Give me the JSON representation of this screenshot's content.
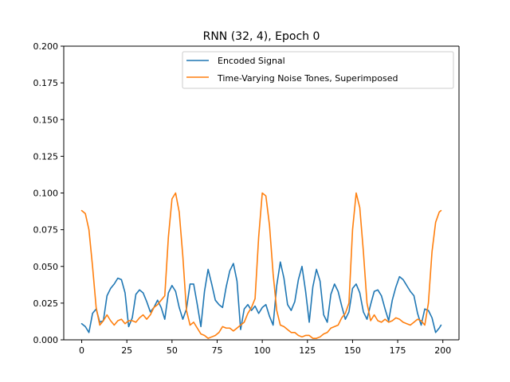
{
  "chart_data": {
    "type": "line",
    "title": "RNN (32, 4), Epoch 0",
    "xlabel": "",
    "ylabel": "",
    "xlim": [
      -9.95,
      208.95
    ],
    "ylim": [
      0.0,
      0.2
    ],
    "xticks": [
      0,
      25,
      50,
      75,
      100,
      125,
      150,
      175,
      200
    ],
    "xtick_labels": [
      "0",
      "25",
      "50",
      "75",
      "100",
      "125",
      "150",
      "175",
      "200"
    ],
    "yticks": [
      0.0,
      0.025,
      0.05,
      0.075,
      0.1,
      0.125,
      0.15,
      0.175,
      0.2
    ],
    "ytick_labels": [
      "0.000",
      "0.025",
      "0.050",
      "0.075",
      "0.100",
      "0.125",
      "0.150",
      "0.175",
      "0.200"
    ],
    "grid": false,
    "legend_position": "upper right",
    "series": [
      {
        "name": "Encoded Signal",
        "color": "#1f77b4",
        "x": [
          0,
          2,
          4,
          6,
          8,
          10,
          12,
          14,
          16,
          18,
          20,
          22,
          24,
          26,
          28,
          30,
          32,
          34,
          36,
          38,
          40,
          42,
          44,
          46,
          48,
          50,
          52,
          54,
          56,
          58,
          60,
          62,
          64,
          66,
          68,
          70,
          72,
          74,
          76,
          78,
          80,
          82,
          84,
          86,
          88,
          90,
          92,
          94,
          96,
          98,
          100,
          102,
          104,
          106,
          108,
          110,
          112,
          114,
          116,
          118,
          120,
          122,
          124,
          126,
          128,
          130,
          132,
          134,
          136,
          138,
          140,
          142,
          144,
          146,
          148,
          150,
          152,
          154,
          156,
          158,
          160,
          162,
          164,
          166,
          168,
          170,
          172,
          174,
          176,
          178,
          180,
          182,
          184,
          186,
          188,
          190,
          192,
          194,
          196,
          198,
          199
        ],
        "y": [
          0.011,
          0.009,
          0.005,
          0.018,
          0.021,
          0.012,
          0.013,
          0.03,
          0.035,
          0.038,
          0.042,
          0.041,
          0.032,
          0.009,
          0.015,
          0.031,
          0.034,
          0.032,
          0.026,
          0.019,
          0.022,
          0.027,
          0.022,
          0.014,
          0.032,
          0.037,
          0.033,
          0.022,
          0.014,
          0.021,
          0.038,
          0.038,
          0.024,
          0.009,
          0.033,
          0.048,
          0.038,
          0.027,
          0.024,
          0.022,
          0.036,
          0.047,
          0.052,
          0.04,
          0.007,
          0.021,
          0.024,
          0.02,
          0.023,
          0.018,
          0.022,
          0.024,
          0.016,
          0.01,
          0.037,
          0.053,
          0.042,
          0.024,
          0.02,
          0.026,
          0.041,
          0.05,
          0.033,
          0.012,
          0.036,
          0.048,
          0.04,
          0.017,
          0.012,
          0.031,
          0.038,
          0.033,
          0.023,
          0.014,
          0.019,
          0.035,
          0.038,
          0.032,
          0.019,
          0.014,
          0.024,
          0.033,
          0.034,
          0.03,
          0.021,
          0.013,
          0.027,
          0.036,
          0.043,
          0.041,
          0.037,
          0.033,
          0.03,
          0.018,
          0.01,
          0.021,
          0.02,
          0.015,
          0.005,
          0.008,
          0.01
        ]
      },
      {
        "name": "Time-Varying Noise Tones, Superimposed",
        "color": "#ff7f0e",
        "x": [
          0,
          2,
          4,
          6,
          8,
          10,
          12,
          14,
          16,
          18,
          20,
          22,
          24,
          26,
          28,
          30,
          32,
          34,
          36,
          38,
          40,
          42,
          44,
          46,
          48,
          50,
          52,
          54,
          56,
          58,
          60,
          62,
          64,
          66,
          68,
          70,
          72,
          74,
          76,
          78,
          80,
          82,
          84,
          86,
          88,
          90,
          92,
          94,
          96,
          98,
          100,
          102,
          104,
          106,
          108,
          110,
          112,
          114,
          116,
          118,
          120,
          122,
          124,
          126,
          128,
          130,
          132,
          134,
          136,
          138,
          140,
          142,
          144,
          146,
          148,
          150,
          152,
          154,
          156,
          158,
          160,
          162,
          164,
          166,
          168,
          170,
          172,
          174,
          176,
          178,
          180,
          182,
          184,
          186,
          188,
          190,
          192,
          194,
          196,
          198,
          199
        ],
        "y": [
          0.088,
          0.086,
          0.075,
          0.05,
          0.022,
          0.01,
          0.013,
          0.017,
          0.013,
          0.01,
          0.013,
          0.014,
          0.011,
          0.013,
          0.013,
          0.012,
          0.015,
          0.017,
          0.014,
          0.017,
          0.022,
          0.024,
          0.027,
          0.03,
          0.07,
          0.096,
          0.1,
          0.087,
          0.057,
          0.02,
          0.01,
          0.012,
          0.008,
          0.004,
          0.003,
          0.001,
          0.002,
          0.003,
          0.005,
          0.009,
          0.008,
          0.008,
          0.006,
          0.008,
          0.01,
          0.012,
          0.018,
          0.022,
          0.028,
          0.07,
          0.1,
          0.098,
          0.078,
          0.045,
          0.02,
          0.01,
          0.009,
          0.007,
          0.005,
          0.005,
          0.003,
          0.002,
          0.003,
          0.003,
          0.001,
          0.001,
          0.002,
          0.004,
          0.005,
          0.008,
          0.009,
          0.01,
          0.015,
          0.018,
          0.025,
          0.075,
          0.1,
          0.09,
          0.06,
          0.025,
          0.013,
          0.017,
          0.013,
          0.012,
          0.014,
          0.012,
          0.013,
          0.015,
          0.014,
          0.012,
          0.011,
          0.01,
          0.012,
          0.014,
          0.013,
          0.01,
          0.025,
          0.06,
          0.08,
          0.087,
          0.088
        ]
      }
    ]
  }
}
